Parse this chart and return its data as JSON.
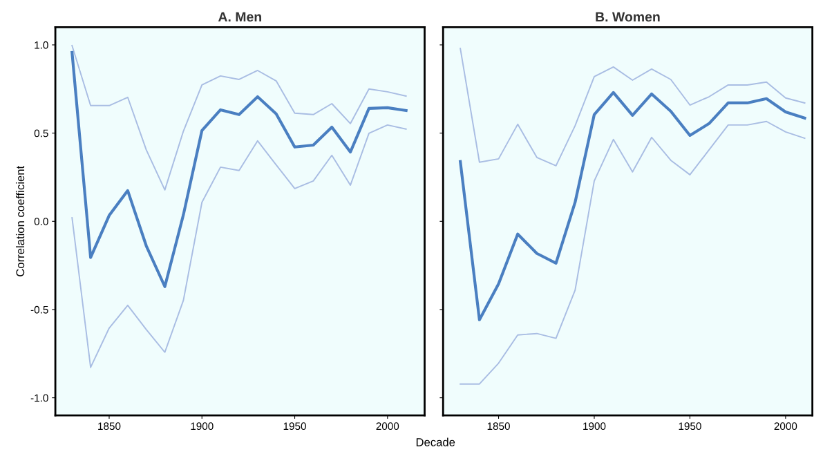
{
  "chart_data": [
    {
      "type": "line",
      "title": "A. Men",
      "xlabel": "Decade",
      "ylabel": "Correlation coefficient",
      "x": [
        1830,
        1840,
        1850,
        1860,
        1870,
        1880,
        1890,
        1900,
        1910,
        1920,
        1930,
        1940,
        1950,
        1960,
        1970,
        1980,
        1990,
        2000,
        2010
      ],
      "xlim": [
        1821,
        2020
      ],
      "xticks": [
        1850,
        1900,
        1950,
        2000
      ],
      "ylim": [
        -1.1,
        1.1
      ],
      "yticks": [
        {
          "value": -1.0,
          "label": "-1.0"
        },
        {
          "value": -0.5,
          "label": "-0.5"
        },
        {
          "value": 0.0,
          "label": "0.0"
        },
        {
          "value": 0.5,
          "label": "0.5"
        },
        {
          "value": 1.0,
          "label": "1.0"
        }
      ],
      "grid": false,
      "legend": false,
      "line_style": "solid",
      "marker": "none",
      "series": [
        {
          "color": "#a9bde3",
          "values": [
            0.996,
            0.656,
            0.656,
            0.703,
            0.405,
            0.178,
            0.511,
            0.773,
            0.824,
            0.804,
            0.855,
            0.796,
            0.613,
            0.605,
            0.667,
            0.554,
            0.75,
            0.734,
            0.71
          ]
        },
        {
          "color": "#a9bde3",
          "values": [
            0.02,
            -0.828,
            -0.605,
            -0.476,
            -0.613,
            -0.742,
            -0.448,
            0.108,
            0.307,
            0.288,
            0.456,
            0.32,
            0.186,
            0.229,
            0.374,
            0.205,
            0.499,
            0.546,
            0.523
          ]
        },
        {
          "color": "#4a7fc1",
          "values": [
            0.957,
            -0.205,
            0.033,
            0.174,
            -0.139,
            -0.37,
            0.037,
            0.515,
            0.632,
            0.605,
            0.706,
            0.609,
            0.421,
            0.432,
            0.534,
            0.393,
            0.64,
            0.644,
            0.628
          ]
        }
      ]
    },
    {
      "type": "line",
      "title": "B. Women",
      "x": [
        1830,
        1840,
        1850,
        1860,
        1870,
        1880,
        1890,
        1900,
        1910,
        1920,
        1930,
        1940,
        1950,
        1960,
        1970,
        1980,
        1990,
        2000,
        2010
      ],
      "xlim": [
        1821,
        2014
      ],
      "xticks": [
        1850,
        1900,
        1950,
        2000
      ],
      "ylim": [
        -1.1,
        1.1
      ],
      "tick_labels": "x",
      "grid": false,
      "legend": false,
      "line_style": "solid",
      "marker": "none",
      "series": [
        {
          "color": "#a9bde3",
          "values": [
            0.98,
            0.335,
            0.354,
            0.55,
            0.362,
            0.315,
            0.542,
            0.82,
            0.875,
            0.8,
            0.863,
            0.804,
            0.659,
            0.706,
            0.773,
            0.773,
            0.789,
            0.699,
            0.671
          ]
        },
        {
          "color": "#a9bde3",
          "values": [
            -0.922,
            -0.922,
            -0.804,
            -0.644,
            -0.636,
            -0.663,
            -0.39,
            0.229,
            0.464,
            0.28,
            0.476,
            0.346,
            0.264,
            0.405,
            0.546,
            0.546,
            0.566,
            0.507,
            0.471
          ]
        },
        {
          "color": "#4a7fc1",
          "values": [
            0.339,
            -0.558,
            -0.354,
            -0.072,
            -0.182,
            -0.237,
            0.108,
            0.605,
            0.73,
            0.601,
            0.722,
            0.624,
            0.487,
            0.554,
            0.671,
            0.671,
            0.695,
            0.62,
            0.585
          ]
        }
      ]
    }
  ]
}
